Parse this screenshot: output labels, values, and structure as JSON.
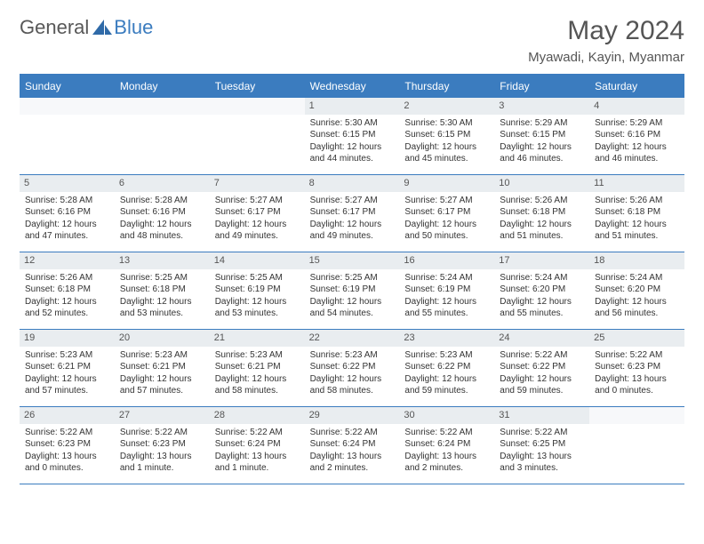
{
  "brand": {
    "part1": "General",
    "part2": "Blue"
  },
  "title": "May 2024",
  "location": "Myawadi, Kayin, Myanmar",
  "colors": {
    "header_bg": "#3b7cbf",
    "header_text": "#ffffff",
    "daynum_bg": "#e9edf0",
    "text": "#333333",
    "title": "#555555",
    "page_bg": "#ffffff",
    "row_border": "#3b7cbf"
  },
  "typography": {
    "title_fontsize": 30,
    "location_fontsize": 15,
    "dayhead_fontsize": 12,
    "cell_fontsize": 10,
    "daynum_fontsize": 11
  },
  "day_names": [
    "Sunday",
    "Monday",
    "Tuesday",
    "Wednesday",
    "Thursday",
    "Friday",
    "Saturday"
  ],
  "weeks": [
    [
      {
        "n": "",
        "lines": []
      },
      {
        "n": "",
        "lines": []
      },
      {
        "n": "",
        "lines": []
      },
      {
        "n": "1",
        "lines": [
          "Sunrise: 5:30 AM",
          "Sunset: 6:15 PM",
          "Daylight: 12 hours",
          "and 44 minutes."
        ]
      },
      {
        "n": "2",
        "lines": [
          "Sunrise: 5:30 AM",
          "Sunset: 6:15 PM",
          "Daylight: 12 hours",
          "and 45 minutes."
        ]
      },
      {
        "n": "3",
        "lines": [
          "Sunrise: 5:29 AM",
          "Sunset: 6:15 PM",
          "Daylight: 12 hours",
          "and 46 minutes."
        ]
      },
      {
        "n": "4",
        "lines": [
          "Sunrise: 5:29 AM",
          "Sunset: 6:16 PM",
          "Daylight: 12 hours",
          "and 46 minutes."
        ]
      }
    ],
    [
      {
        "n": "5",
        "lines": [
          "Sunrise: 5:28 AM",
          "Sunset: 6:16 PM",
          "Daylight: 12 hours",
          "and 47 minutes."
        ]
      },
      {
        "n": "6",
        "lines": [
          "Sunrise: 5:28 AM",
          "Sunset: 6:16 PM",
          "Daylight: 12 hours",
          "and 48 minutes."
        ]
      },
      {
        "n": "7",
        "lines": [
          "Sunrise: 5:27 AM",
          "Sunset: 6:17 PM",
          "Daylight: 12 hours",
          "and 49 minutes."
        ]
      },
      {
        "n": "8",
        "lines": [
          "Sunrise: 5:27 AM",
          "Sunset: 6:17 PM",
          "Daylight: 12 hours",
          "and 49 minutes."
        ]
      },
      {
        "n": "9",
        "lines": [
          "Sunrise: 5:27 AM",
          "Sunset: 6:17 PM",
          "Daylight: 12 hours",
          "and 50 minutes."
        ]
      },
      {
        "n": "10",
        "lines": [
          "Sunrise: 5:26 AM",
          "Sunset: 6:18 PM",
          "Daylight: 12 hours",
          "and 51 minutes."
        ]
      },
      {
        "n": "11",
        "lines": [
          "Sunrise: 5:26 AM",
          "Sunset: 6:18 PM",
          "Daylight: 12 hours",
          "and 51 minutes."
        ]
      }
    ],
    [
      {
        "n": "12",
        "lines": [
          "Sunrise: 5:26 AM",
          "Sunset: 6:18 PM",
          "Daylight: 12 hours",
          "and 52 minutes."
        ]
      },
      {
        "n": "13",
        "lines": [
          "Sunrise: 5:25 AM",
          "Sunset: 6:18 PM",
          "Daylight: 12 hours",
          "and 53 minutes."
        ]
      },
      {
        "n": "14",
        "lines": [
          "Sunrise: 5:25 AM",
          "Sunset: 6:19 PM",
          "Daylight: 12 hours",
          "and 53 minutes."
        ]
      },
      {
        "n": "15",
        "lines": [
          "Sunrise: 5:25 AM",
          "Sunset: 6:19 PM",
          "Daylight: 12 hours",
          "and 54 minutes."
        ]
      },
      {
        "n": "16",
        "lines": [
          "Sunrise: 5:24 AM",
          "Sunset: 6:19 PM",
          "Daylight: 12 hours",
          "and 55 minutes."
        ]
      },
      {
        "n": "17",
        "lines": [
          "Sunrise: 5:24 AM",
          "Sunset: 6:20 PM",
          "Daylight: 12 hours",
          "and 55 minutes."
        ]
      },
      {
        "n": "18",
        "lines": [
          "Sunrise: 5:24 AM",
          "Sunset: 6:20 PM",
          "Daylight: 12 hours",
          "and 56 minutes."
        ]
      }
    ],
    [
      {
        "n": "19",
        "lines": [
          "Sunrise: 5:23 AM",
          "Sunset: 6:21 PM",
          "Daylight: 12 hours",
          "and 57 minutes."
        ]
      },
      {
        "n": "20",
        "lines": [
          "Sunrise: 5:23 AM",
          "Sunset: 6:21 PM",
          "Daylight: 12 hours",
          "and 57 minutes."
        ]
      },
      {
        "n": "21",
        "lines": [
          "Sunrise: 5:23 AM",
          "Sunset: 6:21 PM",
          "Daylight: 12 hours",
          "and 58 minutes."
        ]
      },
      {
        "n": "22",
        "lines": [
          "Sunrise: 5:23 AM",
          "Sunset: 6:22 PM",
          "Daylight: 12 hours",
          "and 58 minutes."
        ]
      },
      {
        "n": "23",
        "lines": [
          "Sunrise: 5:23 AM",
          "Sunset: 6:22 PM",
          "Daylight: 12 hours",
          "and 59 minutes."
        ]
      },
      {
        "n": "24",
        "lines": [
          "Sunrise: 5:22 AM",
          "Sunset: 6:22 PM",
          "Daylight: 12 hours",
          "and 59 minutes."
        ]
      },
      {
        "n": "25",
        "lines": [
          "Sunrise: 5:22 AM",
          "Sunset: 6:23 PM",
          "Daylight: 13 hours",
          "and 0 minutes."
        ]
      }
    ],
    [
      {
        "n": "26",
        "lines": [
          "Sunrise: 5:22 AM",
          "Sunset: 6:23 PM",
          "Daylight: 13 hours",
          "and 0 minutes."
        ]
      },
      {
        "n": "27",
        "lines": [
          "Sunrise: 5:22 AM",
          "Sunset: 6:23 PM",
          "Daylight: 13 hours",
          "and 1 minute."
        ]
      },
      {
        "n": "28",
        "lines": [
          "Sunrise: 5:22 AM",
          "Sunset: 6:24 PM",
          "Daylight: 13 hours",
          "and 1 minute."
        ]
      },
      {
        "n": "29",
        "lines": [
          "Sunrise: 5:22 AM",
          "Sunset: 6:24 PM",
          "Daylight: 13 hours",
          "and 2 minutes."
        ]
      },
      {
        "n": "30",
        "lines": [
          "Sunrise: 5:22 AM",
          "Sunset: 6:24 PM",
          "Daylight: 13 hours",
          "and 2 minutes."
        ]
      },
      {
        "n": "31",
        "lines": [
          "Sunrise: 5:22 AM",
          "Sunset: 6:25 PM",
          "Daylight: 13 hours",
          "and 3 minutes."
        ]
      },
      {
        "n": "",
        "lines": []
      }
    ]
  ]
}
